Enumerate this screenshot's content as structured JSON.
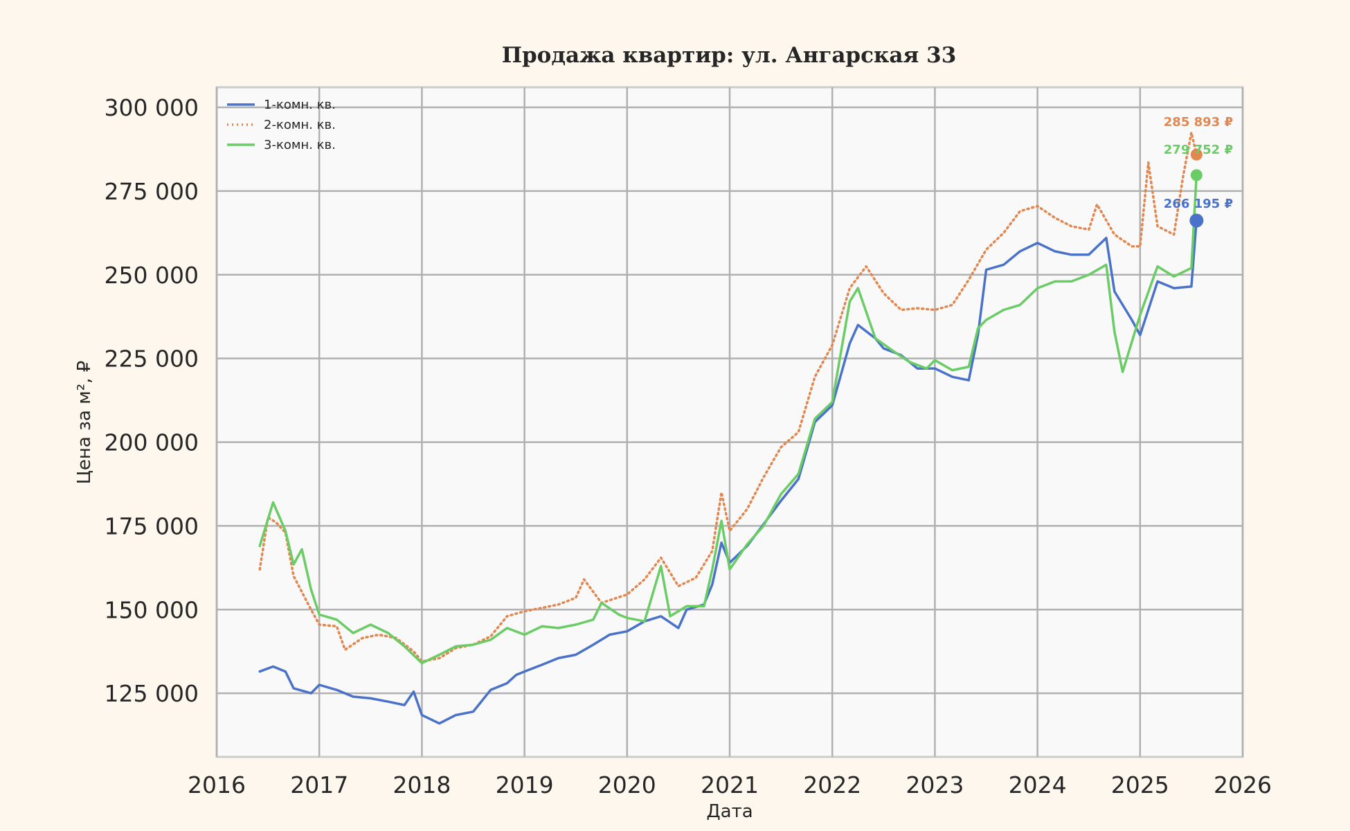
{
  "chart_data": {
    "type": "line",
    "title": "Продажа квартир: ул. Ангарская 33",
    "xlabel": "Дата",
    "ylabel": "Цена за м², ₽",
    "xlim": [
      2016.0,
      2026.0
    ],
    "ylim": [
      106000,
      306000
    ],
    "x_ticks": [
      2016,
      2017,
      2018,
      2019,
      2020,
      2021,
      2022,
      2023,
      2024,
      2025,
      2026
    ],
    "x_tick_labels": [
      "2016",
      "2017",
      "2018",
      "2019",
      "2020",
      "2021",
      "2022",
      "2023",
      "2024",
      "2025",
      "2026"
    ],
    "y_ticks": [
      125000,
      150000,
      175000,
      200000,
      225000,
      250000,
      275000,
      300000
    ],
    "y_tick_labels": [
      "125 000",
      "150 000",
      "175 000",
      "200 000",
      "225 000",
      "250 000",
      "275 000",
      "300 000"
    ],
    "grid": true,
    "legend_position": "top-left",
    "series": [
      {
        "name": "1-комн. кв.",
        "color": "#4a72c8",
        "style": "solid",
        "points": [
          [
            2016.42,
            131500
          ],
          [
            2016.55,
            133000
          ],
          [
            2016.67,
            131500
          ],
          [
            2016.75,
            126500
          ],
          [
            2016.92,
            125000
          ],
          [
            2017.0,
            127500
          ],
          [
            2017.17,
            126000
          ],
          [
            2017.33,
            124000
          ],
          [
            2017.5,
            123500
          ],
          [
            2017.67,
            122500
          ],
          [
            2017.83,
            121500
          ],
          [
            2017.92,
            125500
          ],
          [
            2018.0,
            118500
          ],
          [
            2018.17,
            116000
          ],
          [
            2018.33,
            118500
          ],
          [
            2018.5,
            119500
          ],
          [
            2018.67,
            126000
          ],
          [
            2018.83,
            128000
          ],
          [
            2018.92,
            130500
          ],
          [
            2019.0,
            131500
          ],
          [
            2019.17,
            133500
          ],
          [
            2019.33,
            135500
          ],
          [
            2019.5,
            136500
          ],
          [
            2019.67,
            139500
          ],
          [
            2019.83,
            142500
          ],
          [
            2020.0,
            143500
          ],
          [
            2020.17,
            146500
          ],
          [
            2020.33,
            148000
          ],
          [
            2020.5,
            144500
          ],
          [
            2020.58,
            150000
          ],
          [
            2020.75,
            151500
          ],
          [
            2020.83,
            157500
          ],
          [
            2020.92,
            170000
          ],
          [
            2021.0,
            164000
          ],
          [
            2021.17,
            169000
          ],
          [
            2021.33,
            175500
          ],
          [
            2021.5,
            182500
          ],
          [
            2021.67,
            189000
          ],
          [
            2021.83,
            206000
          ],
          [
            2022.0,
            211000
          ],
          [
            2022.17,
            229500
          ],
          [
            2022.25,
            235000
          ],
          [
            2022.42,
            231000
          ],
          [
            2022.5,
            228000
          ],
          [
            2022.67,
            226000
          ],
          [
            2022.83,
            222000
          ],
          [
            2023.0,
            222000
          ],
          [
            2023.17,
            219500
          ],
          [
            2023.33,
            218500
          ],
          [
            2023.42,
            232000
          ],
          [
            2023.5,
            251500
          ],
          [
            2023.67,
            253000
          ],
          [
            2023.83,
            257000
          ],
          [
            2024.0,
            259500
          ],
          [
            2024.17,
            257000
          ],
          [
            2024.33,
            256000
          ],
          [
            2024.5,
            256000
          ],
          [
            2024.67,
            261000
          ],
          [
            2024.75,
            245000
          ],
          [
            2024.92,
            236500
          ],
          [
            2025.0,
            232000
          ],
          [
            2025.17,
            248000
          ],
          [
            2025.33,
            246000
          ],
          [
            2025.5,
            246500
          ],
          [
            2025.55,
            266195
          ]
        ]
      },
      {
        "name": "2-комн. кв.",
        "color": "#e1874f",
        "style": "dotted",
        "points": [
          [
            2016.42,
            162000
          ],
          [
            2016.5,
            177500
          ],
          [
            2016.58,
            176000
          ],
          [
            2016.67,
            173000
          ],
          [
            2016.75,
            160000
          ],
          [
            2016.92,
            150000
          ],
          [
            2017.0,
            145500
          ],
          [
            2017.17,
            145000
          ],
          [
            2017.25,
            138000
          ],
          [
            2017.42,
            141500
          ],
          [
            2017.58,
            142500
          ],
          [
            2017.75,
            141500
          ],
          [
            2017.92,
            137500
          ],
          [
            2018.0,
            134500
          ],
          [
            2018.17,
            135500
          ],
          [
            2018.33,
            138500
          ],
          [
            2018.5,
            139500
          ],
          [
            2018.67,
            142000
          ],
          [
            2018.83,
            148000
          ],
          [
            2019.0,
            149500
          ],
          [
            2019.17,
            150500
          ],
          [
            2019.33,
            151500
          ],
          [
            2019.5,
            153500
          ],
          [
            2019.58,
            159000
          ],
          [
            2019.75,
            152000
          ],
          [
            2020.0,
            154500
          ],
          [
            2020.17,
            159000
          ],
          [
            2020.33,
            165500
          ],
          [
            2020.5,
            157000
          ],
          [
            2020.67,
            159500
          ],
          [
            2020.83,
            167500
          ],
          [
            2020.92,
            185000
          ],
          [
            2021.0,
            173500
          ],
          [
            2021.17,
            180000
          ],
          [
            2021.33,
            189500
          ],
          [
            2021.5,
            198500
          ],
          [
            2021.67,
            203000
          ],
          [
            2021.83,
            219500
          ],
          [
            2022.0,
            229000
          ],
          [
            2022.17,
            246000
          ],
          [
            2022.33,
            252500
          ],
          [
            2022.5,
            244500
          ],
          [
            2022.67,
            239500
          ],
          [
            2022.83,
            240000
          ],
          [
            2023.0,
            239500
          ],
          [
            2023.17,
            241000
          ],
          [
            2023.33,
            248500
          ],
          [
            2023.5,
            257500
          ],
          [
            2023.67,
            262500
          ],
          [
            2023.83,
            269000
          ],
          [
            2024.0,
            270500
          ],
          [
            2024.17,
            267000
          ],
          [
            2024.33,
            264500
          ],
          [
            2024.5,
            263500
          ],
          [
            2024.58,
            271000
          ],
          [
            2024.75,
            262000
          ],
          [
            2024.92,
            258500
          ],
          [
            2025.0,
            258500
          ],
          [
            2025.08,
            283500
          ],
          [
            2025.17,
            264500
          ],
          [
            2025.33,
            262000
          ],
          [
            2025.42,
            279500
          ],
          [
            2025.5,
            292500
          ],
          [
            2025.55,
            285893
          ]
        ]
      },
      {
        "name": "3-комн. кв.",
        "color": "#6acc64",
        "style": "solid",
        "points": [
          [
            2016.42,
            169000
          ],
          [
            2016.5,
            177000
          ],
          [
            2016.55,
            182000
          ],
          [
            2016.67,
            173500
          ],
          [
            2016.75,
            163500
          ],
          [
            2016.83,
            168000
          ],
          [
            2016.92,
            156000
          ],
          [
            2017.0,
            148500
          ],
          [
            2017.17,
            147000
          ],
          [
            2017.33,
            143000
          ],
          [
            2017.5,
            145500
          ],
          [
            2017.67,
            143000
          ],
          [
            2017.83,
            139000
          ],
          [
            2018.0,
            134000
          ],
          [
            2018.17,
            136500
          ],
          [
            2018.33,
            139000
          ],
          [
            2018.5,
            139500
          ],
          [
            2018.67,
            141000
          ],
          [
            2018.83,
            144500
          ],
          [
            2019.0,
            142500
          ],
          [
            2019.17,
            145000
          ],
          [
            2019.33,
            144500
          ],
          [
            2019.5,
            145500
          ],
          [
            2019.67,
            147000
          ],
          [
            2019.75,
            152000
          ],
          [
            2019.92,
            148500
          ],
          [
            2020.0,
            147500
          ],
          [
            2020.17,
            146500
          ],
          [
            2020.33,
            163000
          ],
          [
            2020.42,
            148000
          ],
          [
            2020.58,
            151000
          ],
          [
            2020.75,
            151000
          ],
          [
            2020.83,
            162000
          ],
          [
            2020.92,
            176500
          ],
          [
            2021.0,
            162000
          ],
          [
            2021.17,
            169500
          ],
          [
            2021.33,
            175000
          ],
          [
            2021.5,
            184500
          ],
          [
            2021.67,
            190500
          ],
          [
            2021.83,
            207000
          ],
          [
            2022.0,
            212000
          ],
          [
            2022.17,
            242000
          ],
          [
            2022.25,
            246000
          ],
          [
            2022.42,
            231000
          ],
          [
            2022.58,
            227500
          ],
          [
            2022.75,
            224000
          ],
          [
            2022.92,
            222000
          ],
          [
            2023.0,
            224500
          ],
          [
            2023.17,
            221500
          ],
          [
            2023.33,
            222500
          ],
          [
            2023.42,
            234000
          ],
          [
            2023.5,
            236500
          ],
          [
            2023.67,
            239500
          ],
          [
            2023.83,
            241000
          ],
          [
            2024.0,
            246000
          ],
          [
            2024.17,
            248000
          ],
          [
            2024.33,
            248000
          ],
          [
            2024.5,
            250000
          ],
          [
            2024.67,
            253000
          ],
          [
            2024.75,
            233000
          ],
          [
            2024.83,
            221000
          ],
          [
            2025.0,
            238000
          ],
          [
            2025.17,
            252500
          ],
          [
            2025.33,
            249500
          ],
          [
            2025.5,
            252000
          ],
          [
            2025.55,
            279752
          ]
        ]
      }
    ],
    "end_labels": [
      {
        "series": "2-комн. кв.",
        "x": 2025.55,
        "value": 285893,
        "text": "285 893 ₽",
        "color": "#e1874f"
      },
      {
        "series": "3-комн. кв.",
        "x": 2025.55,
        "value": 279752,
        "text": "279 752 ₽",
        "color": "#6acc64"
      },
      {
        "series": "1-комн. кв.",
        "x": 2025.55,
        "value": 266195,
        "text": "266 195 ₽",
        "color": "#4a72c8"
      }
    ]
  }
}
